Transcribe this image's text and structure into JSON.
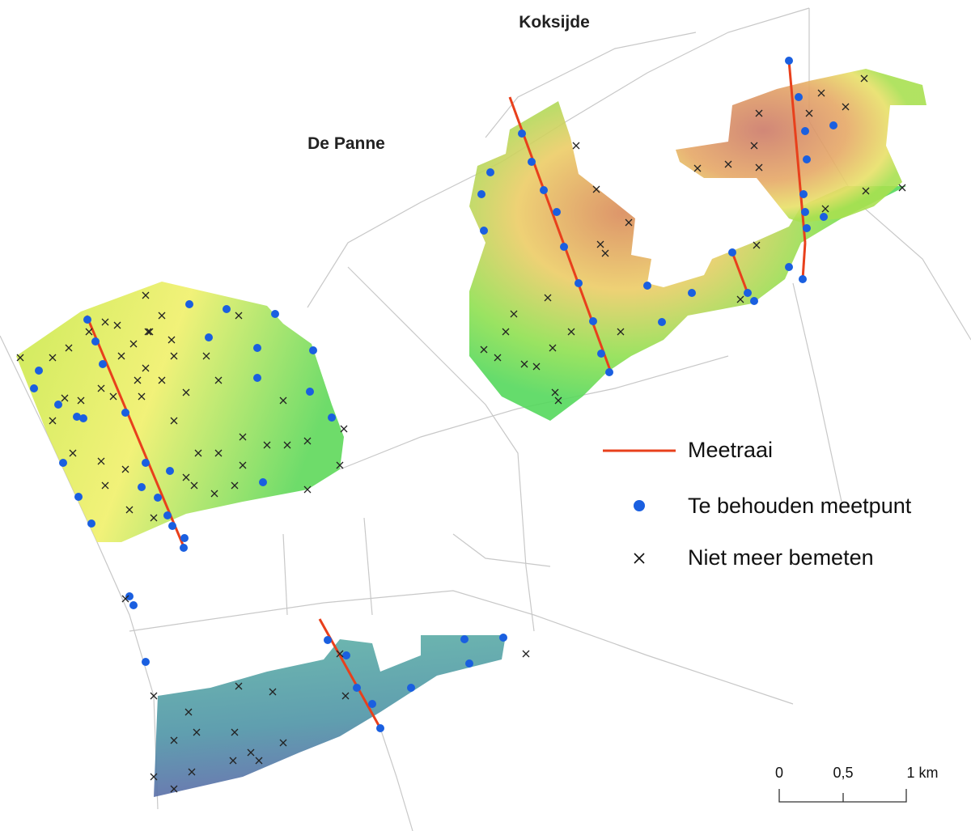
{
  "places": [
    {
      "label": "Koksijde"
    },
    {
      "label": "De Panne"
    }
  ],
  "legend": {
    "items": [
      {
        "label": "Meetraai"
      },
      {
        "label": "Te behouden meetpunt"
      },
      {
        "label": "Niet meer bemeten"
      }
    ]
  },
  "scale_bar": {
    "labels": [
      "0",
      "0,5",
      "1 km"
    ]
  }
}
